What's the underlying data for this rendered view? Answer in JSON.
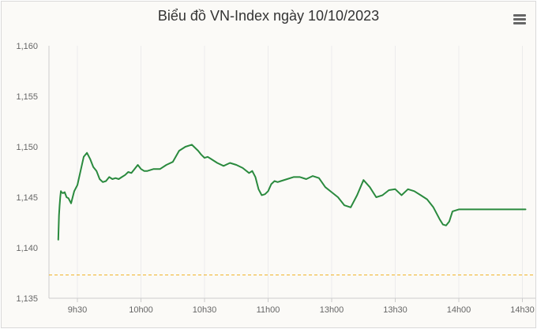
{
  "chart_data": {
    "type": "line",
    "title": "Biểu đồ VN-Index ngày 10/10/2023",
    "xlabel": "",
    "ylabel": "",
    "ylim": [
      1135,
      1160
    ],
    "y_ticks": [
      1135,
      1140,
      1145,
      1150,
      1155,
      1160
    ],
    "y_tick_labels": [
      "1,135",
      "1,140",
      "1,145",
      "1,150",
      "1,155",
      "1,160"
    ],
    "x_ticks": [
      "9h30",
      "10h00",
      "10h30",
      "11h00",
      "13h00",
      "13h30",
      "14h00",
      "14h30"
    ],
    "grid": "vertical",
    "legend": "none",
    "line_color": "#2a8a3e",
    "reference_line": {
      "value": 1137.3,
      "color": "#f0b429",
      "style": "dashed"
    },
    "series": [
      {
        "x": [
          -0.3,
          -0.29,
          -0.28,
          -0.27,
          -0.26,
          -0.25,
          -0.23,
          -0.2,
          -0.17,
          -0.14,
          -0.1,
          -0.05,
          0.0,
          0.05,
          0.1,
          0.15,
          0.2,
          0.25,
          0.3,
          0.35,
          0.4,
          0.45,
          0.5,
          0.55,
          0.6,
          0.65,
          0.7,
          0.75,
          0.8,
          0.85,
          0.9,
          0.95,
          1.0,
          1.05,
          1.1,
          1.2,
          1.3,
          1.4,
          1.5,
          1.6,
          1.7,
          1.8,
          1.9,
          1.95,
          2.0,
          2.05,
          2.1,
          2.2,
          2.3,
          2.4,
          2.5,
          2.6,
          2.7,
          2.75,
          2.8,
          2.85,
          2.9,
          2.95,
          3.0,
          3.05,
          3.1,
          3.15,
          3.2,
          3.3,
          3.4,
          3.5,
          3.6,
          3.7,
          3.8,
          3.9,
          4.0,
          4.1,
          4.2,
          4.3,
          4.4,
          4.5,
          4.6,
          4.7,
          4.8,
          4.9,
          5.0,
          5.1,
          5.2,
          5.3,
          5.4,
          5.5,
          5.6,
          5.7,
          5.75,
          5.8,
          5.85,
          5.9,
          6.0,
          6.05,
          6.1,
          6.15,
          6.2,
          6.3,
          6.4,
          6.5,
          6.6,
          6.7,
          6.8,
          6.9,
          6.95,
          7.0,
          7.02,
          7.05
        ],
        "values": [
          1140.8,
          1143.2,
          1144.2,
          1145.0,
          1145.6,
          1145.5,
          1145.4,
          1145.5,
          1145.0,
          1144.9,
          1144.4,
          1145.6,
          1146.2,
          1147.6,
          1149.0,
          1149.4,
          1148.8,
          1148.0,
          1147.6,
          1146.8,
          1146.5,
          1146.6,
          1147.0,
          1146.8,
          1146.9,
          1146.8,
          1147.0,
          1147.2,
          1147.5,
          1147.4,
          1147.8,
          1148.2,
          1147.8,
          1147.6,
          1147.6,
          1147.8,
          1147.8,
          1148.2,
          1148.5,
          1149.6,
          1150.0,
          1150.2,
          1149.6,
          1149.2,
          1148.9,
          1149.0,
          1148.8,
          1148.4,
          1148.1,
          1148.4,
          1148.2,
          1147.9,
          1147.4,
          1147.6,
          1147.0,
          1145.8,
          1145.2,
          1145.3,
          1145.6,
          1146.3,
          1146.6,
          1146.5,
          1146.6,
          1146.8,
          1147.0,
          1147.0,
          1146.8,
          1147.1,
          1146.9,
          1146.0,
          1145.5,
          1145.0,
          1144.2,
          1144.0,
          1145.2,
          1146.7,
          1146.0,
          1145.0,
          1145.2,
          1145.7,
          1145.8,
          1145.2,
          1145.8,
          1145.6,
          1145.2,
          1144.8,
          1144.0,
          1142.8,
          1142.3,
          1142.2,
          1142.6,
          1143.6,
          1143.8,
          1143.8,
          1143.8,
          1143.8,
          1143.8,
          1143.8,
          1143.8,
          1143.8,
          1143.8,
          1143.8,
          1143.8,
          1143.8,
          1143.8,
          1143.8,
          1143.8,
          1143.8
        ]
      }
    ]
  }
}
